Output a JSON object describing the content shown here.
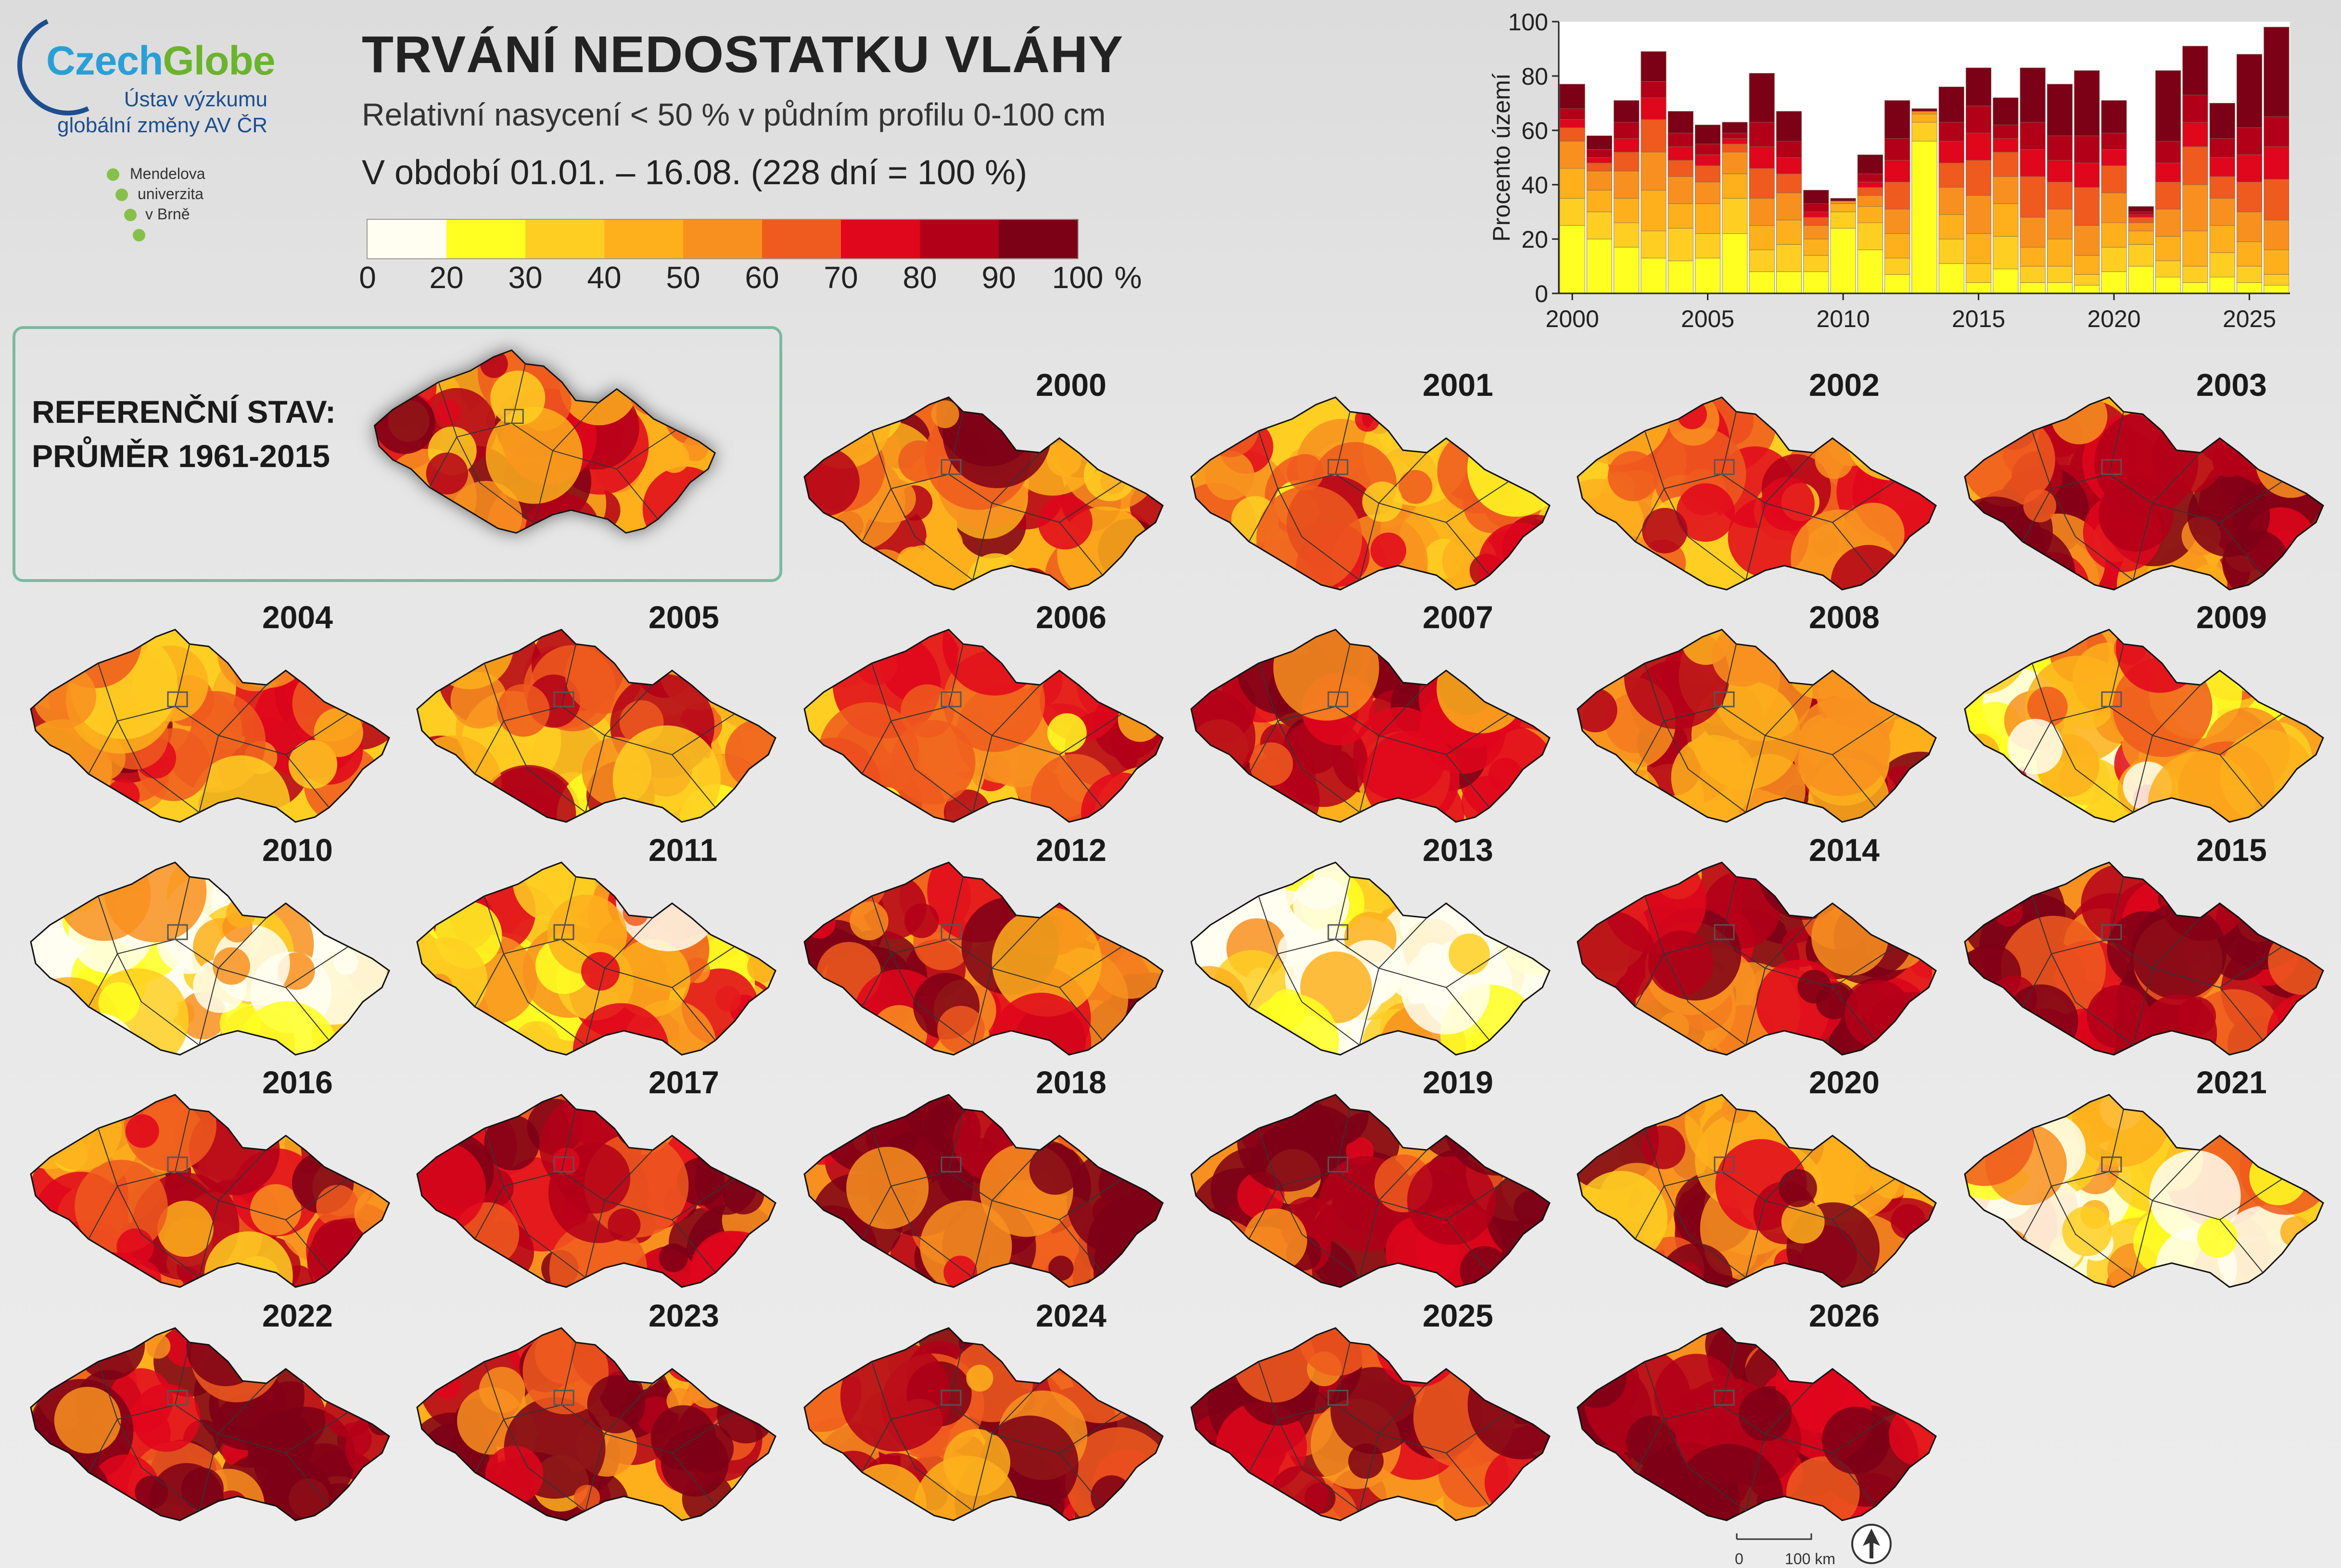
{
  "header": {
    "logo_name": "CzechGlobe",
    "logo_part1": "Czech",
    "logo_part2": "Globe",
    "institute_line1": "Ústav výzkumu",
    "institute_line2": "globální změny AV ČR",
    "university": [
      "Mendelova",
      "univerzita",
      "v Brně"
    ],
    "title": "TRVÁNÍ NEDOSTATKU VLÁHY",
    "subtitle": "Relativní nasycení < 50 % v půdním profilu 0-100 cm",
    "period": "V období 01.01. – 16.08. (228 dní = 100 %)"
  },
  "legend": {
    "ticks": [
      "0",
      "20",
      "30",
      "40",
      "50",
      "60",
      "70",
      "80",
      "90",
      "100"
    ],
    "unit": "%",
    "colors": [
      "#fffef0",
      "#ffff22",
      "#fecf22",
      "#fdb01c",
      "#f89020",
      "#ef5a1e",
      "#e0061c",
      "#b30019",
      "#7c0016"
    ]
  },
  "reference": {
    "label_line1": "REFERENČNÍ STAV:",
    "label_line2": "PRŮMĚR 1961-2015"
  },
  "chart_data": {
    "type": "bar",
    "stacked": true,
    "ylabel": "Procento území",
    "ylim": [
      0,
      100
    ],
    "yticks": [
      "0",
      "20",
      "40",
      "60",
      "80",
      "100"
    ],
    "xticks": [
      "2000",
      "2005",
      "2010",
      "2015",
      "2020",
      "2025"
    ],
    "categories": [
      "2000",
      "2001",
      "2002",
      "2003",
      "2004",
      "2005",
      "2006",
      "2007",
      "2008",
      "2009",
      "2010",
      "2011",
      "2012",
      "2013",
      "2014",
      "2015",
      "2016",
      "2017",
      "2018",
      "2019",
      "2020",
      "2021",
      "2022",
      "2023",
      "2024",
      "2025",
      "2026"
    ],
    "series": [
      {
        "color": "#ffff22",
        "values": [
          25,
          20,
          17,
          13,
          12,
          13,
          22,
          8,
          8,
          8,
          24,
          16,
          7,
          56,
          11,
          4,
          9,
          4,
          4,
          3,
          8,
          10,
          6,
          4,
          6,
          4,
          3
        ]
      },
      {
        "color": "#fecf22",
        "values": [
          10,
          10,
          9,
          10,
          12,
          9,
          13,
          8,
          10,
          6,
          6,
          10,
          6,
          7,
          9,
          7,
          12,
          6,
          6,
          4,
          9,
          8,
          6,
          6,
          9,
          6,
          4
        ]
      },
      {
        "color": "#fdb01c",
        "values": [
          11,
          8,
          9,
          15,
          9,
          11,
          9,
          9,
          9,
          6,
          3,
          6,
          9,
          3,
          9,
          11,
          12,
          7,
          10,
          7,
          9,
          5,
          9,
          13,
          10,
          9,
          9
        ]
      },
      {
        "color": "#f89020",
        "values": [
          10,
          7,
          10,
          14,
          10,
          8,
          8,
          10,
          10,
          5,
          1,
          4,
          9,
          1,
          10,
          14,
          10,
          11,
          11,
          11,
          11,
          3,
          10,
          17,
          10,
          11,
          11
        ]
      },
      {
        "color": "#ef5a1e",
        "values": [
          5,
          3,
          7,
          12,
          6,
          6,
          3,
          11,
          7,
          3,
          0,
          3,
          10,
          0,
          9,
          13,
          9,
          15,
          10,
          14,
          10,
          2,
          10,
          14,
          8,
          11,
          15
        ]
      },
      {
        "color": "#e0061c",
        "values": [
          3,
          2,
          5,
          8,
          5,
          4,
          2,
          8,
          6,
          2,
          0,
          2,
          8,
          0,
          8,
          10,
          5,
          10,
          8,
          9,
          6,
          1,
          7,
          9,
          7,
          10,
          12
        ]
      },
      {
        "color": "#b30019",
        "values": [
          4,
          3,
          6,
          6,
          5,
          4,
          2,
          9,
          6,
          3,
          0,
          3,
          8,
          0,
          7,
          10,
          5,
          10,
          9,
          10,
          6,
          1,
          8,
          10,
          7,
          10,
          11
        ]
      },
      {
        "color": "#7c0016",
        "values": [
          9,
          5,
          8,
          11,
          8,
          7,
          4,
          18,
          11,
          5,
          1,
          7,
          14,
          1,
          13,
          14,
          10,
          20,
          19,
          24,
          12,
          2,
          26,
          18,
          13,
          27,
          33
        ]
      }
    ]
  },
  "years": [
    "2000",
    "2001",
    "2002",
    "2003",
    "2004",
    "2005",
    "2006",
    "2007",
    "2008",
    "2009",
    "2010",
    "2011",
    "2012",
    "2013",
    "2014",
    "2015",
    "2016",
    "2017",
    "2018",
    "2019",
    "2020",
    "2021",
    "2022",
    "2023",
    "2024",
    "2025",
    "2026"
  ],
  "intensity": [
    0.62,
    0.5,
    0.58,
    0.78,
    0.6,
    0.55,
    0.5,
    0.72,
    0.66,
    0.4,
    0.18,
    0.42,
    0.76,
    0.14,
    0.72,
    0.82,
    0.62,
    0.84,
    0.86,
    0.86,
    0.66,
    0.3,
    0.8,
    0.78,
    0.74,
    0.78,
    0.86
  ],
  "scale": {
    "zero": "0",
    "km": "100 km"
  }
}
